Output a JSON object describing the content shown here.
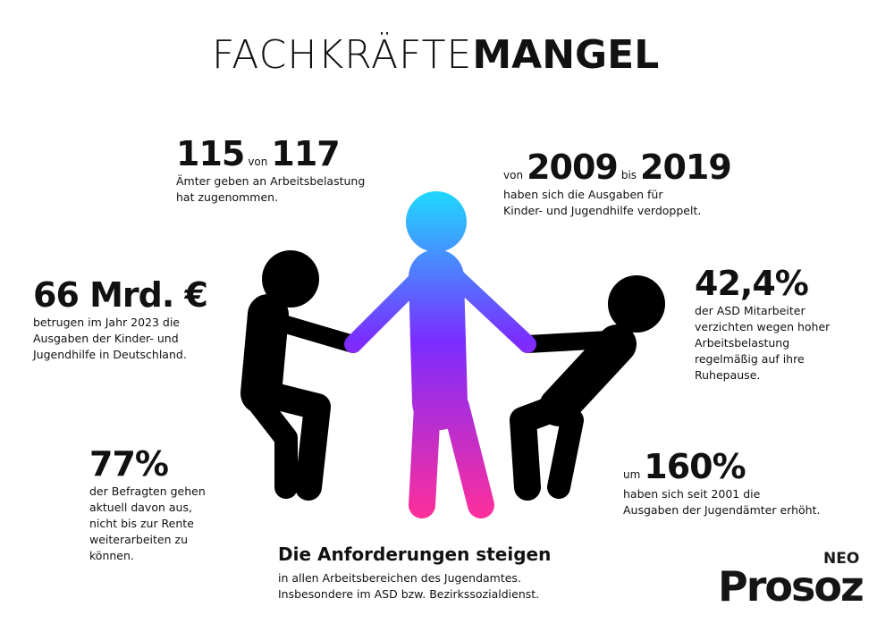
{
  "title": {
    "light": "FACHKRÄFTE",
    "bold": "MANGEL"
  },
  "stats": [
    {
      "parts": [
        "115",
        "von",
        "117"
      ],
      "lines": [
        "Ämter geben an Arbeitsbelastung",
        "hat zugenommen."
      ]
    },
    {
      "parts": [
        "von",
        "2009",
        "bis",
        "2019"
      ],
      "lines": [
        "haben sich die Ausgaben für",
        "Kinder- und Jugendhilfe verdoppelt."
      ]
    },
    {
      "parts": [
        "66 Mrd. €"
      ],
      "lines": [
        "betrugen im Jahr 2023 die",
        "Ausgaben der Kinder- und",
        "Jugendhilfe in Deutschland."
      ]
    },
    {
      "parts": [
        "42,4%"
      ],
      "lines": [
        "der ASD Mitarbeiter",
        "verzichten wegen hoher",
        "Arbeitsbelastung",
        "regelmäßig auf ihre",
        "Ruhepause."
      ]
    },
    {
      "parts": [
        "77%"
      ],
      "lines": [
        "der Befragten gehen",
        "aktuell davon aus,",
        "nicht bis zur Rente",
        "weiterarbeiten zu",
        "können."
      ]
    },
    {
      "parts": [
        "um",
        "160%"
      ],
      "lines": [
        "haben sich seit 2001 die",
        "Ausgaben der Jugendämter erhöht."
      ]
    }
  ],
  "footer": {
    "heading": "Die Anforderungen steigen",
    "lines": [
      "in allen Arbeitsbereichen des Jugendamtes.",
      "Insbesondere im ASD bzw. Bezirkssozialdienst."
    ]
  },
  "logo": {
    "small": "NEO",
    "main": "Prosoz"
  }
}
